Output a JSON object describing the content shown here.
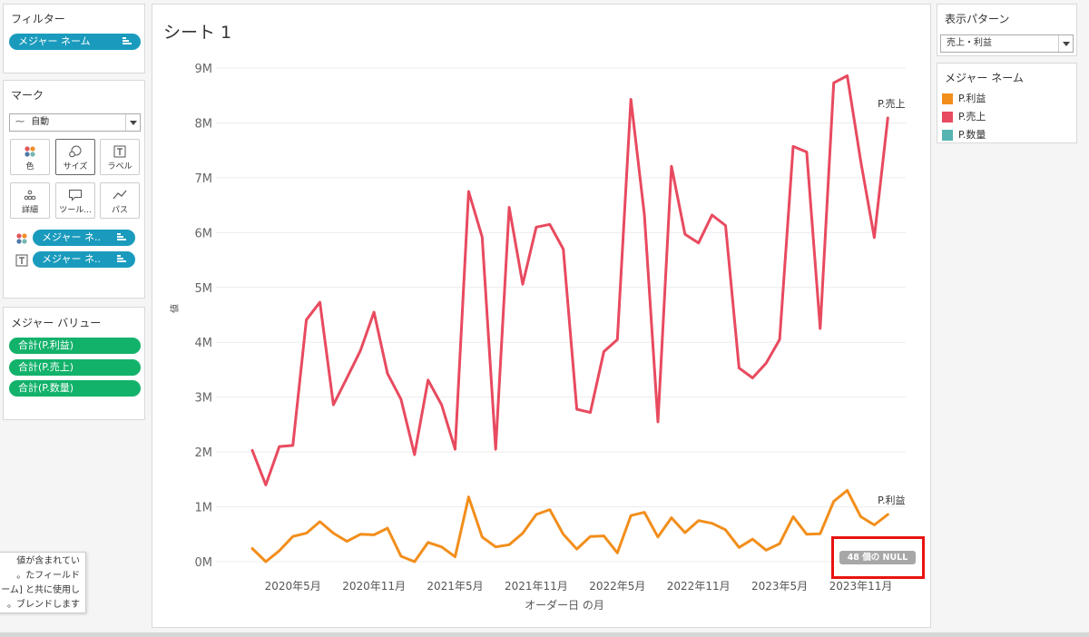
{
  "filters": {
    "title": "フィルター",
    "pill": "メジャー ネーム"
  },
  "marks": {
    "title": "マーク",
    "mark_type": "自動",
    "buttons": [
      {
        "label": "色",
        "icon": "color-dots-icon"
      },
      {
        "label": "サイズ",
        "icon": "size-circles-icon"
      },
      {
        "label": "ラベル",
        "icon": "label-t-icon"
      },
      {
        "label": "詳細",
        "icon": "detail-dots-icon"
      },
      {
        "label": "ツール...",
        "icon": "tooltip-bubble-icon"
      },
      {
        "label": "パス",
        "icon": "path-line-icon"
      }
    ],
    "color_pill": "メジャー ネ..",
    "label_pill": "メジャー ネ.."
  },
  "measure_values": {
    "title": "メジャー バリュー",
    "pills": [
      "合計(P.利益)",
      "合計(P.売上)",
      "合計(P.数量)"
    ]
  },
  "tooltip_lines": [
    "値が含まれてい",
    "たフィールド。",
    "ーム] と共に使用し",
    "ブレンドします。"
  ],
  "sheet": {
    "title": "シート 1"
  },
  "show_me": {
    "title": "表示パターン",
    "value": "売上・利益"
  },
  "legend": {
    "title": "メジャー ネーム",
    "items": [
      {
        "label": "P.利益",
        "color": "#f28e1b"
      },
      {
        "label": "P.売上",
        "color": "#e84a5f"
      },
      {
        "label": "P.数量",
        "color": "#56b4b2"
      }
    ]
  },
  "null_indicator": "48 個の NULL",
  "chart_data": {
    "type": "line",
    "xlabel": "オーダー日 の月",
    "ylabel": "値",
    "ylim": [
      0,
      9000000
    ],
    "y_ticks": [
      "0M",
      "1M",
      "2M",
      "3M",
      "4M",
      "5M",
      "6M",
      "7M",
      "8M",
      "9M"
    ],
    "x_ticks": [
      "2020年5月",
      "2020年11月",
      "2021年5月",
      "2021年11月",
      "2022年5月",
      "2022年11月",
      "2023年5月",
      "2023年11月"
    ],
    "x_tick_index": [
      3,
      9,
      15,
      21,
      27,
      33,
      39,
      45
    ],
    "months": 48,
    "grid": true,
    "series": [
      {
        "name": "P.売上",
        "color": "#e84a5f",
        "end_label": "P.売上",
        "values": [
          2.03,
          1.4,
          2.1,
          2.12,
          4.41,
          4.73,
          2.86,
          3.35,
          3.85,
          4.55,
          3.43,
          2.96,
          1.95,
          3.31,
          2.86,
          2.05,
          6.75,
          5.92,
          2.05,
          6.46,
          5.06,
          6.1,
          6.15,
          5.7,
          2.78,
          2.72,
          3.83,
          4.05,
          8.43,
          6.32,
          2.55,
          7.21,
          5.97,
          5.81,
          6.32,
          6.13,
          3.53,
          3.35,
          3.62,
          4.05,
          7.57,
          7.47,
          4.25,
          8.73,
          8.86,
          7.3,
          5.91,
          8.09
        ]
      },
      {
        "name": "P.利益",
        "color": "#f28e1b",
        "end_label": "P.利益",
        "values": [
          0.24,
          0.0,
          0.2,
          0.46,
          0.52,
          0.73,
          0.52,
          0.37,
          0.5,
          0.49,
          0.61,
          0.1,
          0.0,
          0.35,
          0.27,
          0.09,
          1.18,
          0.45,
          0.27,
          0.31,
          0.52,
          0.86,
          0.95,
          0.5,
          0.23,
          0.46,
          0.47,
          0.16,
          0.84,
          0.9,
          0.45,
          0.8,
          0.53,
          0.75,
          0.7,
          0.58,
          0.26,
          0.41,
          0.21,
          0.33,
          0.82,
          0.5,
          0.51,
          1.1,
          1.3,
          0.82,
          0.67,
          0.86
        ]
      }
    ]
  }
}
